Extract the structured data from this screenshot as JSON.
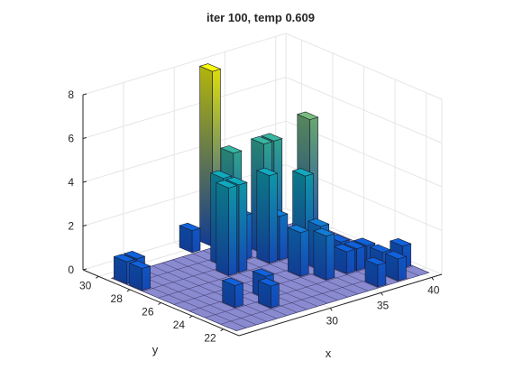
{
  "chart_data": {
    "type": "bar3d",
    "title": "iter 100, temp 0.609",
    "xlabel": "x",
    "ylabel": "y",
    "zlabel": "",
    "xlim": [
      21,
      41
    ],
    "ylim": [
      21,
      31
    ],
    "zlim": [
      0,
      8
    ],
    "xticks": [
      30,
      35,
      40
    ],
    "yticks": [
      22,
      24,
      26,
      28,
      30
    ],
    "zticks": [
      0,
      2,
      4,
      6,
      8
    ],
    "grid": true,
    "colormap": "parula",
    "floor_color": "#8a8ad0",
    "bars": [
      {
        "x": 22,
        "y": 29,
        "z": 1
      },
      {
        "x": 22,
        "y": 28,
        "z": 1
      },
      {
        "x": 23,
        "y": 29,
        "z": 1
      },
      {
        "x": 25,
        "y": 24,
        "z": 1
      },
      {
        "x": 27,
        "y": 23,
        "z": 1
      },
      {
        "x": 28,
        "y": 24,
        "z": 1
      },
      {
        "x": 30,
        "y": 30,
        "z": 1
      },
      {
        "x": 29,
        "y": 27,
        "z": 4
      },
      {
        "x": 30,
        "y": 28,
        "z": 4
      },
      {
        "x": 30,
        "y": 27,
        "z": 4
      },
      {
        "x": 32,
        "y": 30,
        "z": 8
      },
      {
        "x": 31,
        "y": 28,
        "z": 5
      },
      {
        "x": 32,
        "y": 28,
        "z": 2
      },
      {
        "x": 33,
        "y": 27,
        "z": 4
      },
      {
        "x": 34,
        "y": 28,
        "z": 5
      },
      {
        "x": 35,
        "y": 28,
        "z": 5
      },
      {
        "x": 34,
        "y": 27,
        "z": 2
      },
      {
        "x": 35,
        "y": 26,
        "z": 4
      },
      {
        "x": 37,
        "y": 27,
        "z": 6
      },
      {
        "x": 33,
        "y": 25,
        "z": 2
      },
      {
        "x": 34,
        "y": 24,
        "z": 2
      },
      {
        "x": 35,
        "y": 25,
        "z": 2
      },
      {
        "x": 36,
        "y": 24,
        "z": 1
      },
      {
        "x": 37,
        "y": 25,
        "z": 1
      },
      {
        "x": 37,
        "y": 24,
        "z": 1
      },
      {
        "x": 38,
        "y": 24,
        "z": 1
      },
      {
        "x": 38,
        "y": 23,
        "z": 1
      },
      {
        "x": 36,
        "y": 22,
        "z": 1
      },
      {
        "x": 38,
        "y": 22,
        "z": 1
      },
      {
        "x": 40,
        "y": 23,
        "z": 1
      }
    ]
  }
}
